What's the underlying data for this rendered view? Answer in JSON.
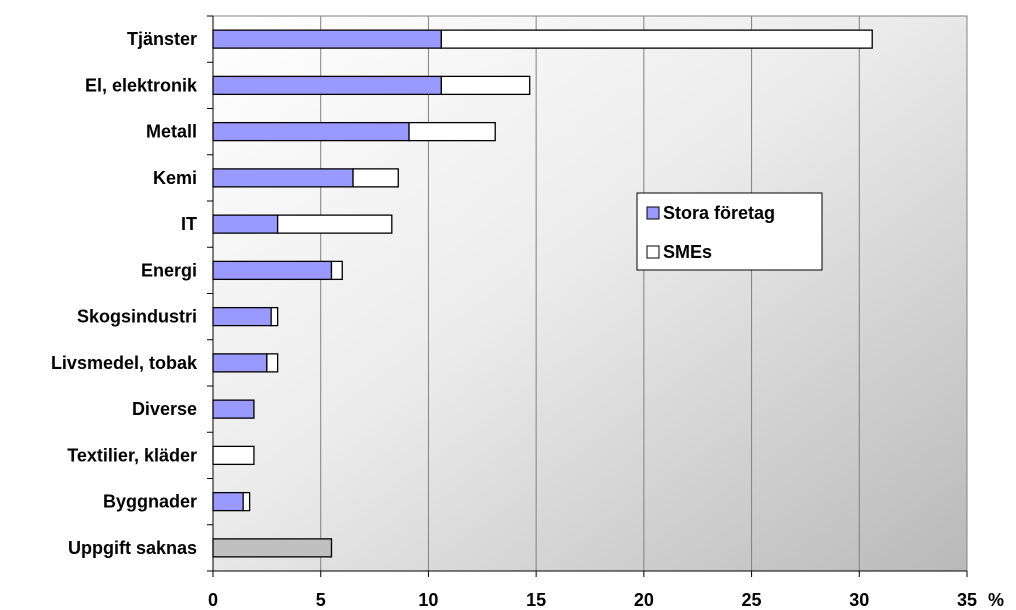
{
  "chart_data": {
    "type": "bar",
    "orientation": "horizontal",
    "stacked": true,
    "title": "",
    "xlabel": "",
    "x_unit": "%",
    "ylabel": "",
    "xlim": [
      0,
      35
    ],
    "x_ticks": [
      0,
      5,
      10,
      15,
      20,
      25,
      30,
      35
    ],
    "grid": "vertical",
    "legend_position": "right-center",
    "categories": [
      "Tjänster",
      "El, elektronik",
      "Metall",
      "Kemi",
      "IT",
      "Energi",
      "Skogsindustri",
      "Livsmedel, tobak",
      "Diverse",
      "Textilier, kläder",
      "Byggnader",
      "Uppgift saknas"
    ],
    "series": [
      {
        "name": "Stora företag",
        "color": "#9999ff",
        "values": [
          10.6,
          10.6,
          9.1,
          6.5,
          3.0,
          5.5,
          2.7,
          2.5,
          1.9,
          0,
          1.4,
          0
        ]
      },
      {
        "name": "SMEs",
        "color": "#ffffff",
        "values": [
          20.0,
          4.1,
          4.0,
          2.1,
          5.3,
          0.5,
          0.3,
          0.5,
          0,
          1.9,
          0.3,
          0
        ]
      },
      {
        "name": "",
        "color": "#c0c0c0",
        "values": [
          0,
          0,
          0,
          0,
          0,
          0,
          0,
          0,
          0,
          0,
          0,
          5.5
        ]
      }
    ]
  }
}
